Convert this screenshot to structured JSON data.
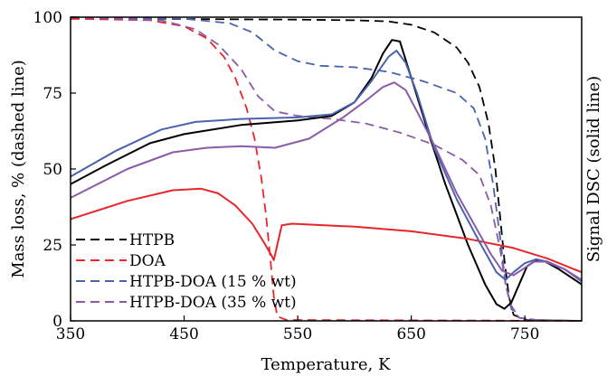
{
  "chart_data": {
    "type": "line",
    "title": "",
    "xlabel": "Temperature, K",
    "ylabel": "Mass loss, % (dashed line)",
    "y2label": "Signal DSC (solid line)",
    "xlim": [
      350,
      800
    ],
    "ylim": [
      0,
      100
    ],
    "xticks": [
      "350",
      "450",
      "550",
      "650",
      "750"
    ],
    "yticks": [
      "0",
      "25",
      "50",
      "75",
      "100"
    ],
    "grid": false,
    "legend_position": "bottom-left",
    "legend": [
      {
        "label": "HTPB",
        "color": "#000000"
      },
      {
        "label": "DOA",
        "color": "#e8262a"
      },
      {
        "label": "HTPB-DOA (15 % wt)",
        "color": "#4a62b0"
      },
      {
        "label": "HTPB-DOA (35 % wt)",
        "color": "#8a5ca8"
      }
    ],
    "series": [
      {
        "name": "HTPB",
        "style": "dashed",
        "color": "#000000",
        "points": [
          [
            350,
            99.5
          ],
          [
            400,
            99.5
          ],
          [
            450,
            99.4
          ],
          [
            500,
            99.3
          ],
          [
            550,
            99.2
          ],
          [
            600,
            99
          ],
          [
            630,
            98.6
          ],
          [
            650,
            97.5
          ],
          [
            670,
            95
          ],
          [
            690,
            90
          ],
          [
            700,
            85
          ],
          [
            710,
            77
          ],
          [
            718,
            65
          ],
          [
            724,
            50
          ],
          [
            728,
            35
          ],
          [
            732,
            20
          ],
          [
            736,
            8
          ],
          [
            740,
            2
          ],
          [
            750,
            0.3
          ],
          [
            800,
            0
          ]
        ]
      },
      {
        "name": "DOA",
        "style": "dashed",
        "color": "#e8262a",
        "points": [
          [
            350,
            99.5
          ],
          [
            420,
            99
          ],
          [
            450,
            97
          ],
          [
            470,
            93
          ],
          [
            485,
            87
          ],
          [
            495,
            80
          ],
          [
            505,
            70
          ],
          [
            512,
            60
          ],
          [
            518,
            47
          ],
          [
            522,
            35
          ],
          [
            526,
            20
          ],
          [
            529,
            8
          ],
          [
            532,
            1.5
          ],
          [
            540,
            0.3
          ],
          [
            800,
            0
          ]
        ]
      },
      {
        "name": "HTPB-DOA (15 % wt)",
        "style": "dashed",
        "color": "#4a62b0",
        "points": [
          [
            350,
            100
          ],
          [
            450,
            99.5
          ],
          [
            490,
            98
          ],
          [
            510,
            95
          ],
          [
            530,
            89
          ],
          [
            550,
            85.5
          ],
          [
            570,
            84
          ],
          [
            600,
            83.5
          ],
          [
            630,
            82
          ],
          [
            660,
            79
          ],
          [
            690,
            75
          ],
          [
            705,
            70
          ],
          [
            715,
            60
          ],
          [
            722,
            45
          ],
          [
            728,
            28
          ],
          [
            733,
            12
          ],
          [
            738,
            4
          ],
          [
            745,
            1
          ],
          [
            760,
            0.3
          ],
          [
            800,
            0
          ]
        ]
      },
      {
        "name": "HTPB-DOA (35 % wt)",
        "style": "dashed",
        "color": "#8a5ca8",
        "points": [
          [
            350,
            100
          ],
          [
            430,
            99
          ],
          [
            460,
            96
          ],
          [
            480,
            91
          ],
          [
            500,
            83
          ],
          [
            515,
            74
          ],
          [
            530,
            69
          ],
          [
            550,
            67.5
          ],
          [
            580,
            66.5
          ],
          [
            610,
            65
          ],
          [
            640,
            62
          ],
          [
            670,
            58
          ],
          [
            695,
            53
          ],
          [
            710,
            48
          ],
          [
            720,
            38
          ],
          [
            728,
            24
          ],
          [
            733,
            12
          ],
          [
            738,
            5
          ],
          [
            745,
            1
          ],
          [
            760,
            0.3
          ],
          [
            800,
            0
          ]
        ]
      },
      {
        "name": "HTPB",
        "style": "solid",
        "color": "#000000",
        "points": [
          [
            350,
            45
          ],
          [
            380,
            51
          ],
          [
            420,
            58.5
          ],
          [
            450,
            61.5
          ],
          [
            500,
            64.5
          ],
          [
            550,
            66
          ],
          [
            580,
            67.5
          ],
          [
            600,
            72
          ],
          [
            615,
            80
          ],
          [
            625,
            88
          ],
          [
            633,
            92.5
          ],
          [
            640,
            92
          ],
          [
            650,
            80
          ],
          [
            665,
            62
          ],
          [
            680,
            45
          ],
          [
            700,
            25
          ],
          [
            715,
            12
          ],
          [
            725,
            5.5
          ],
          [
            732,
            4
          ],
          [
            738,
            6
          ],
          [
            745,
            12
          ],
          [
            752,
            18
          ],
          [
            760,
            20
          ],
          [
            768,
            19.5
          ],
          [
            780,
            17
          ],
          [
            800,
            12
          ]
        ]
      },
      {
        "name": "DOA",
        "style": "solid",
        "color": "#e8262a",
        "points": [
          [
            350,
            33.5
          ],
          [
            400,
            39.5
          ],
          [
            440,
            43
          ],
          [
            465,
            43.5
          ],
          [
            480,
            42
          ],
          [
            495,
            38
          ],
          [
            510,
            32
          ],
          [
            520,
            26
          ],
          [
            527,
            21.5
          ],
          [
            529,
            20
          ],
          [
            532,
            25
          ],
          [
            536,
            31.5
          ],
          [
            545,
            32
          ],
          [
            600,
            31
          ],
          [
            650,
            29.5
          ],
          [
            700,
            27
          ],
          [
            740,
            24
          ],
          [
            770,
            20.5
          ],
          [
            800,
            16
          ]
        ]
      },
      {
        "name": "HTPB-DOA (15 % wt)",
        "style": "solid",
        "color": "#4a62b0",
        "points": [
          [
            350,
            47.5
          ],
          [
            390,
            56
          ],
          [
            430,
            63
          ],
          [
            460,
            65.5
          ],
          [
            500,
            66.5
          ],
          [
            550,
            67
          ],
          [
            580,
            68
          ],
          [
            600,
            72
          ],
          [
            615,
            79
          ],
          [
            630,
            87
          ],
          [
            637,
            89
          ],
          [
            645,
            85
          ],
          [
            655,
            75
          ],
          [
            670,
            57
          ],
          [
            690,
            40
          ],
          [
            710,
            26
          ],
          [
            725,
            16
          ],
          [
            733,
            13.5
          ],
          [
            740,
            16
          ],
          [
            750,
            19
          ],
          [
            760,
            20.3
          ],
          [
            770,
            19.5
          ],
          [
            785,
            17
          ],
          [
            800,
            13
          ]
        ]
      },
      {
        "name": "HTPB-DOA (35 % wt)",
        "style": "solid",
        "color": "#8a5ca8",
        "points": [
          [
            350,
            40.5
          ],
          [
            400,
            50
          ],
          [
            440,
            55.5
          ],
          [
            470,
            57
          ],
          [
            500,
            57.5
          ],
          [
            530,
            57
          ],
          [
            560,
            60
          ],
          [
            590,
            67
          ],
          [
            610,
            72.5
          ],
          [
            625,
            77
          ],
          [
            635,
            78.5
          ],
          [
            645,
            76
          ],
          [
            655,
            69
          ],
          [
            670,
            58
          ],
          [
            690,
            42
          ],
          [
            705,
            32
          ],
          [
            720,
            22
          ],
          [
            730,
            16.5
          ],
          [
            740,
            15
          ],
          [
            748,
            17
          ],
          [
            758,
            19.5
          ],
          [
            768,
            19.5
          ],
          [
            785,
            17
          ],
          [
            800,
            13.5
          ]
        ]
      }
    ]
  }
}
